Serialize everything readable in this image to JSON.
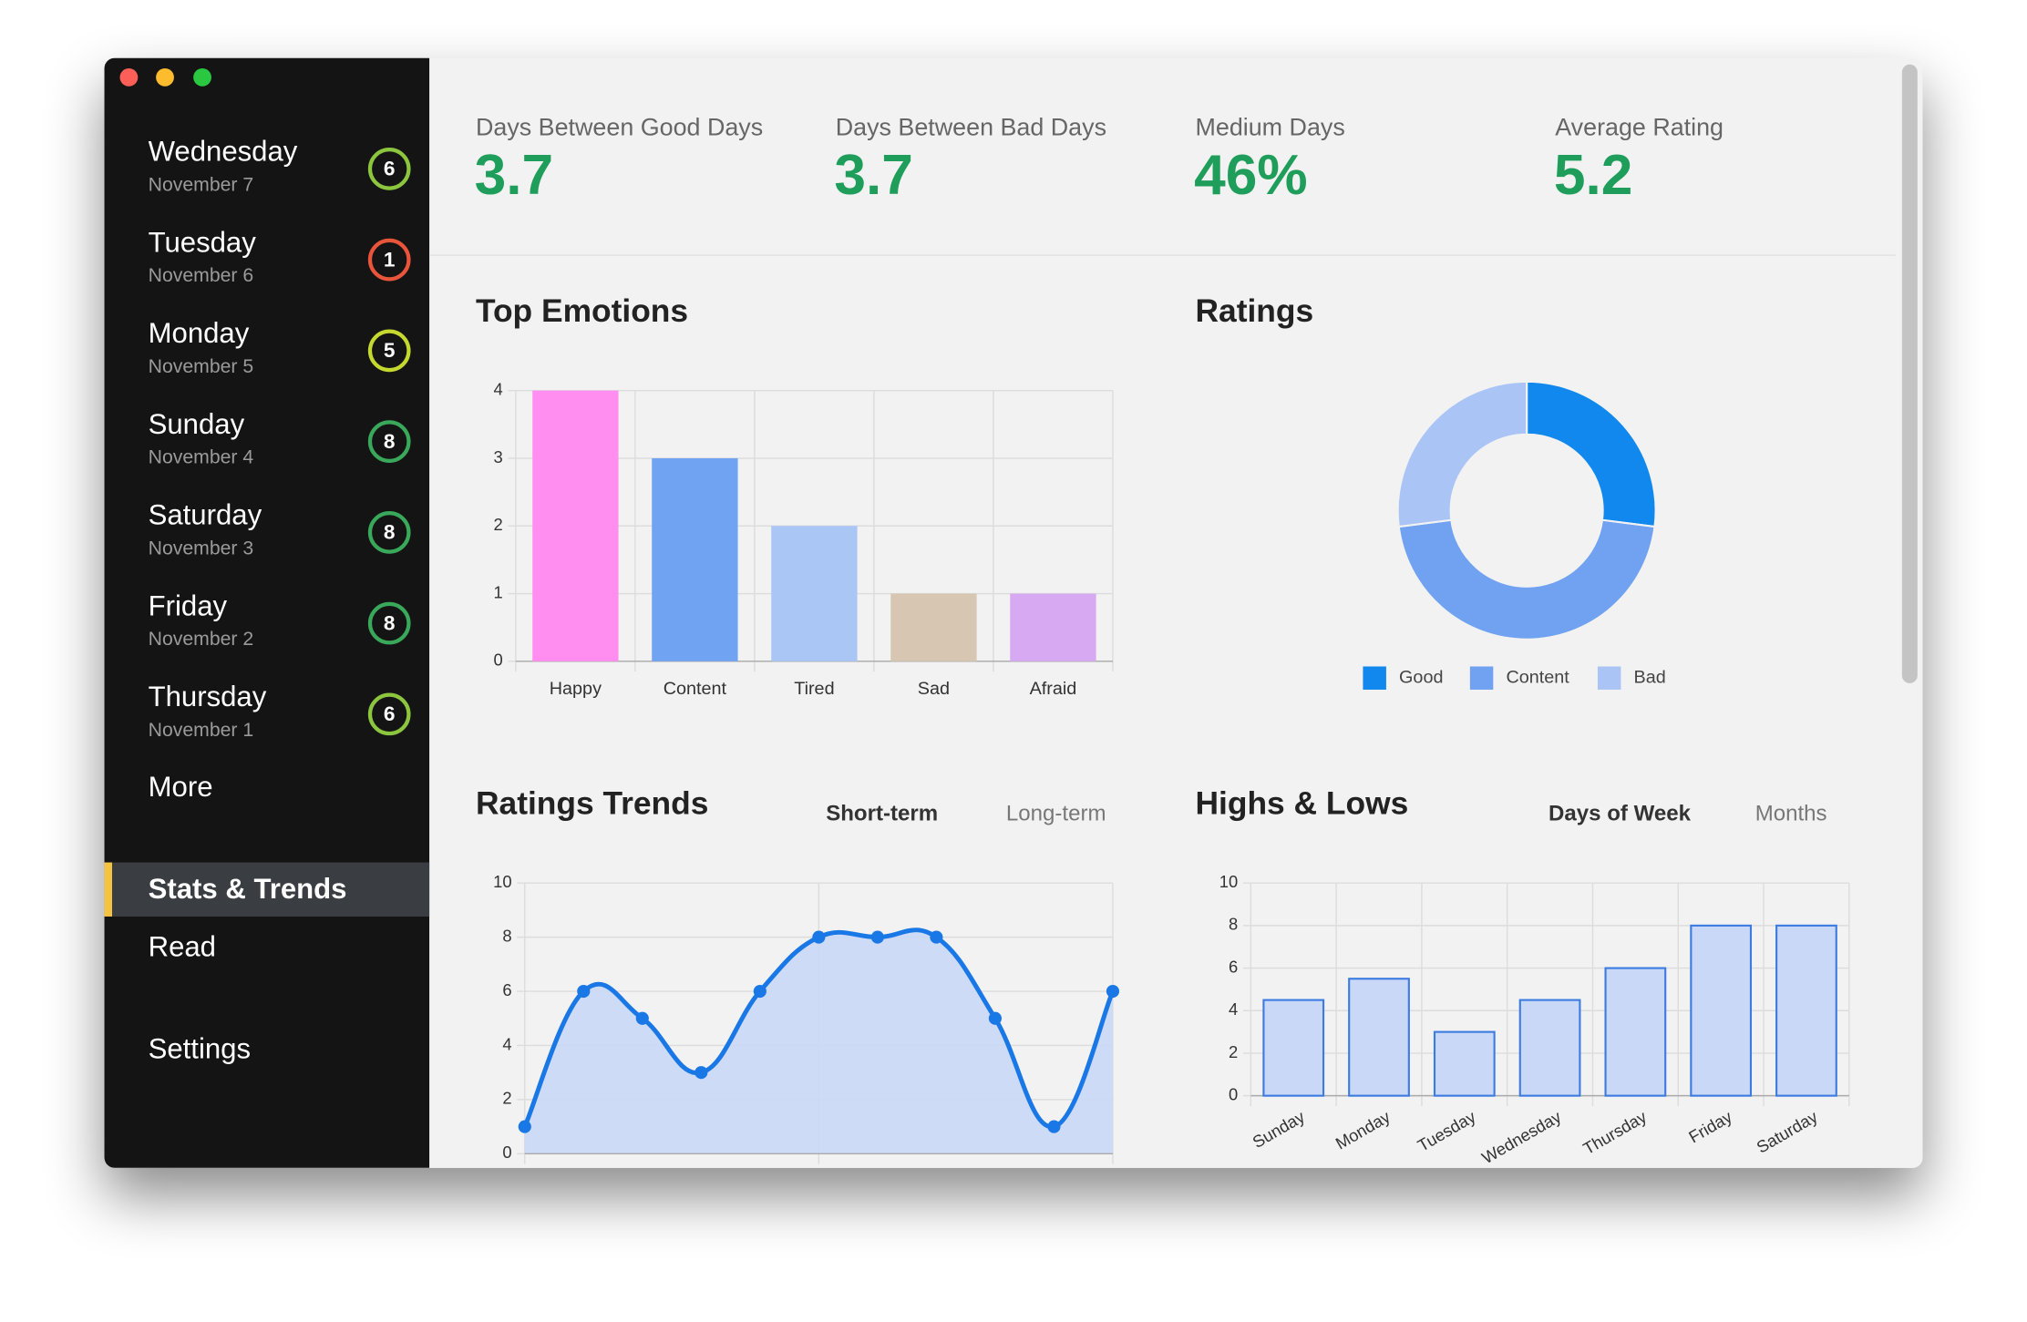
{
  "sidebar": {
    "days": [
      {
        "name": "Wednesday",
        "date": "November 7",
        "rating": 6,
        "color": "#8cc63f"
      },
      {
        "name": "Tuesday",
        "date": "November 6",
        "rating": 1,
        "color": "#e8553a"
      },
      {
        "name": "Monday",
        "date": "November 5",
        "rating": 5,
        "color": "#c5d82e"
      },
      {
        "name": "Sunday",
        "date": "November 4",
        "rating": 8,
        "color": "#3aa85a"
      },
      {
        "name": "Saturday",
        "date": "November 3",
        "rating": 8,
        "color": "#3aa85a"
      },
      {
        "name": "Friday",
        "date": "November 2",
        "rating": 8,
        "color": "#3aa85a"
      },
      {
        "name": "Thursday",
        "date": "November 1",
        "rating": 6,
        "color": "#8cc63f"
      }
    ],
    "more": "More",
    "nav": [
      "Stats & Trends",
      "Read",
      "Settings"
    ],
    "active": 0
  },
  "stats": [
    {
      "label": "Days Between Good Days",
      "value": "3.7"
    },
    {
      "label": "Days Between Bad Days",
      "value": "3.7"
    },
    {
      "label": "Medium Days",
      "value": "46%"
    },
    {
      "label": "Average Rating",
      "value": "5.2"
    }
  ],
  "charts": [
    {
      "type": "bar",
      "title": "Top Emotions",
      "categories": [
        "Happy",
        "Content",
        "Tired",
        "Sad",
        "Afraid"
      ],
      "values": [
        4,
        3,
        2,
        1,
        1
      ],
      "colors": [
        "#ff8ef0",
        "#70a4f2",
        "#a9c6f5",
        "#d6c6b2",
        "#d6a9f2"
      ],
      "ylim": [
        0,
        4
      ],
      "yticks": [
        0,
        1,
        2,
        3,
        4
      ],
      "grid": true
    },
    {
      "type": "donut",
      "title": "Ratings",
      "categories": [
        "Good",
        "Content",
        "Bad"
      ],
      "values": [
        27,
        46,
        27
      ],
      "colors": [
        "#1188ee",
        "#70a2f1",
        "#aac5f5"
      ]
    },
    {
      "type": "line",
      "title": "Ratings Trends",
      "tabs": [
        "Short-term",
        "Long-term"
      ],
      "active_tab": 0,
      "values": [
        1,
        6,
        5,
        3,
        6,
        8,
        8,
        8,
        5,
        1,
        6
      ],
      "color": "#1a78e6",
      "ylim": [
        0,
        10
      ],
      "yticks": [
        0,
        2,
        4,
        6,
        8,
        10
      ],
      "grid": true
    },
    {
      "type": "bar",
      "title": "Highs & Lows",
      "tabs": [
        "Days of Week",
        "Months"
      ],
      "active_tab": 0,
      "categories": [
        "Sunday",
        "Monday",
        "Tuesday",
        "Wednesday",
        "Thursday",
        "Friday",
        "Saturday"
      ],
      "values": [
        4.5,
        5.5,
        3,
        4.5,
        6,
        8,
        8
      ],
      "color": "#c9d8f6",
      "stroke": "#3c7be0",
      "ylim": [
        0,
        10
      ],
      "yticks": [
        0,
        2,
        4,
        6,
        8,
        10
      ],
      "grid": true,
      "rotate_labels": true
    }
  ]
}
